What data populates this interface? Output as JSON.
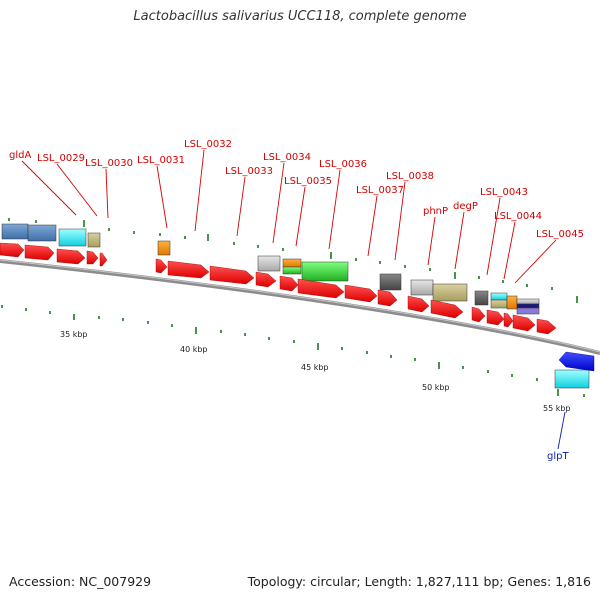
{
  "title": "Lactobacillus salivarius UCC118, complete genome",
  "footer": {
    "accession": "Accession: NC_007929",
    "topology": "Topology: circular; Length: 1,827,111 bp; Genes: 1,816"
  },
  "gene_labels": [
    "gldA",
    "LSL_0029",
    "LSL_0030",
    "LSL_0031",
    "LSL_0032",
    "LSL_0033",
    "LSL_0034",
    "LSL_0035",
    "LSL_0036",
    "LSL_0037",
    "LSL_0038",
    "phnP",
    "degP",
    "LSL_0043",
    "LSL_0044",
    "LSL_0045",
    "glpT"
  ],
  "scale_labels": [
    "35 kbp",
    "40 kbp",
    "45 kbp",
    "50 kbp",
    "55 kbp"
  ],
  "colors": {
    "forward_gene": "#ff0000",
    "reverse_gene": "#0000ee",
    "backbone": "#888888",
    "label_red": "#d40000",
    "label_blue": "#0a1fb0",
    "tick": "#1a7a1a"
  }
}
